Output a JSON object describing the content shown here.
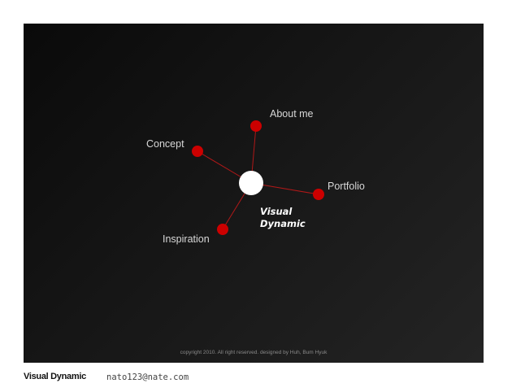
{
  "stage": {
    "brand_line1": "Visual",
    "brand_line2": "Dynamic",
    "copyright": "copyright 2010. All right reserved. designed by Huh, Bum Hyuk"
  },
  "menu": [
    {
      "label": "About me"
    },
    {
      "label": "Concept"
    },
    {
      "label": "Portfolio"
    },
    {
      "label": "Inspiration"
    }
  ],
  "footer": {
    "title": "Visual Dynamic",
    "email": "nato123@nate.com"
  },
  "colors": {
    "node": "#cc0000",
    "connector": "#b01818",
    "hub": "#ffffff"
  }
}
